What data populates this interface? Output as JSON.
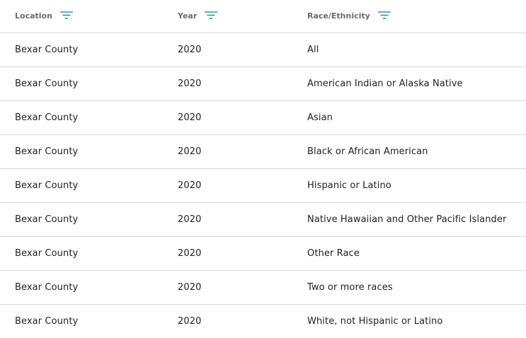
{
  "table": {
    "headers": {
      "location": "Location",
      "year": "Year",
      "race": "Race/Ethnicity"
    },
    "rows": [
      {
        "location": "Bexar County",
        "year": "2020",
        "race": "All"
      },
      {
        "location": "Bexar County",
        "year": "2020",
        "race": "American Indian or Alaska Native"
      },
      {
        "location": "Bexar County",
        "year": "2020",
        "race": "Asian"
      },
      {
        "location": "Bexar County",
        "year": "2020",
        "race": "Black or African American"
      },
      {
        "location": "Bexar County",
        "year": "2020",
        "race": "Hispanic or Latino"
      },
      {
        "location": "Bexar County",
        "year": "2020",
        "race": "Native Hawaiian and Other Pacific Islander"
      },
      {
        "location": "Bexar County",
        "year": "2020",
        "race": "Other Race"
      },
      {
        "location": "Bexar County",
        "year": "2020",
        "race": "Two or more races"
      },
      {
        "location": "Bexar County",
        "year": "2020",
        "race": "White, not Hispanic or Latino"
      }
    ]
  },
  "icons": {
    "filter": "filter-icon"
  },
  "colors": {
    "accent": "#2a9d8f",
    "divider": "#d9d9d9",
    "header_text": "#6b6b6b",
    "cell_text": "#222222"
  }
}
